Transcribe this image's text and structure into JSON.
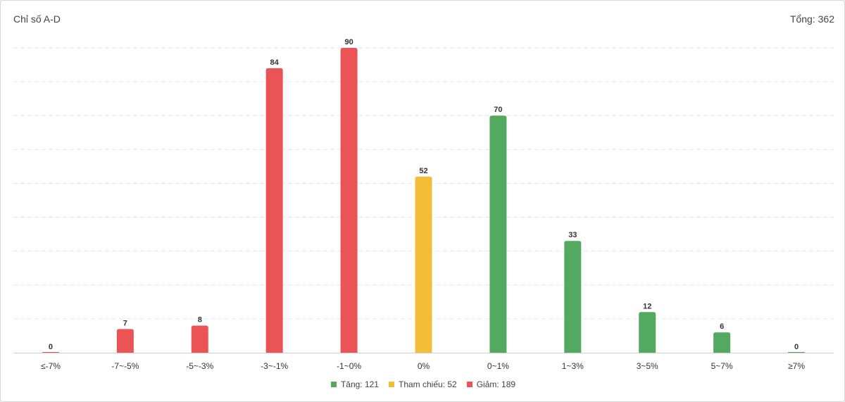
{
  "header": {
    "title": "Chỉ số A-D",
    "total": "Tổng: 362"
  },
  "legend": [
    {
      "label": "Tăng: 121",
      "color": "#52a95f"
    },
    {
      "label": "Tham chiếu: 52",
      "color": "#f4bd38"
    },
    {
      "label": "Giảm: 189",
      "color": "#ea5455"
    }
  ],
  "chart_data": {
    "type": "bar",
    "title": "",
    "xlabel": "",
    "ylabel": "",
    "ylim": [
      0,
      90
    ],
    "grid": true,
    "legend_position": "bottom",
    "categories": [
      "≤-7%",
      "-7~-5%",
      "-5~-3%",
      "-3~-1%",
      "-1~0%",
      "0%",
      "0~1%",
      "1~3%",
      "3~5%",
      "5~7%",
      "≥7%"
    ],
    "values": [
      0,
      7,
      8,
      84,
      90,
      52,
      70,
      33,
      12,
      6,
      0
    ],
    "colors": [
      "#ea5455",
      "#ea5455",
      "#ea5455",
      "#ea5455",
      "#ea5455",
      "#f4bd38",
      "#52a95f",
      "#52a95f",
      "#52a95f",
      "#52a95f",
      "#52a95f"
    ]
  }
}
